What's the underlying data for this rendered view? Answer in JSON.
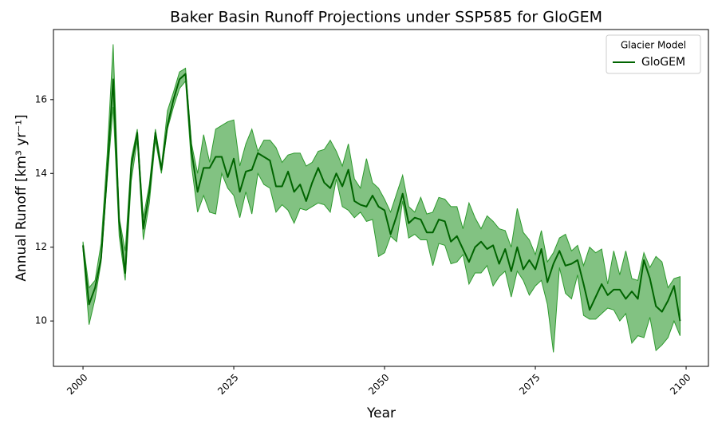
{
  "chart_data": {
    "type": "line",
    "title": "Baker Basin Runoff Projections under SSP585 for GloGEM",
    "x_label": "Year",
    "y_label": "Annual Runoff [km³ yr⁻¹]",
    "legend_title": "Glacier Model",
    "legend": "upper right",
    "x": [
      2000,
      2001,
      2002,
      2003,
      2004,
      2005,
      2006,
      2007,
      2008,
      2009,
      2010,
      2011,
      2012,
      2013,
      2014,
      2015,
      2016,
      2017,
      2018,
      2019,
      2020,
      2021,
      2022,
      2023,
      2024,
      2025,
      2026,
      2027,
      2028,
      2029,
      2030,
      2031,
      2032,
      2033,
      2034,
      2035,
      2036,
      2037,
      2038,
      2039,
      2040,
      2041,
      2042,
      2043,
      2044,
      2045,
      2046,
      2047,
      2048,
      2049,
      2050,
      2051,
      2052,
      2053,
      2054,
      2055,
      2056,
      2057,
      2058,
      2059,
      2060,
      2061,
      2062,
      2063,
      2064,
      2065,
      2066,
      2067,
      2068,
      2069,
      2070,
      2071,
      2072,
      2073,
      2074,
      2075,
      2076,
      2077,
      2078,
      2079,
      2080,
      2081,
      2082,
      2083,
      2084,
      2085,
      2086,
      2087,
      2088,
      2089,
      2090,
      2091,
      2092,
      2093,
      2094,
      2095,
      2096,
      2097,
      2098,
      2099
    ],
    "series": [
      {
        "name": "GloGEM",
        "color": "#006400",
        "band_color": "#2e9a2e",
        "band_opacity": 0.6,
        "values": [
          12.05,
          10.45,
          10.9,
          11.7,
          14.0,
          16.55,
          12.7,
          11.3,
          14.2,
          15.1,
          12.5,
          13.5,
          15.1,
          14.1,
          15.3,
          16.0,
          16.55,
          16.7,
          14.6,
          13.5,
          14.15,
          14.15,
          14.45,
          14.45,
          13.9,
          14.4,
          13.5,
          14.05,
          14.1,
          14.55,
          14.45,
          14.35,
          13.65,
          13.65,
          14.05,
          13.5,
          13.7,
          13.25,
          13.75,
          14.15,
          13.75,
          13.6,
          14.0,
          13.65,
          14.1,
          13.25,
          13.15,
          13.1,
          13.4,
          13.1,
          13.0,
          12.35,
          12.85,
          13.45,
          12.65,
          12.8,
          12.75,
          12.4,
          12.4,
          12.75,
          12.7,
          12.15,
          12.3,
          11.95,
          11.6,
          12.0,
          12.15,
          11.95,
          12.05,
          11.55,
          11.95,
          11.35,
          12.0,
          11.4,
          11.65,
          11.4,
          11.95,
          11.05,
          11.55,
          11.9,
          11.5,
          11.55,
          11.65,
          11.0,
          10.3,
          10.65,
          11.0,
          10.7,
          10.85,
          10.85,
          10.6,
          10.8,
          10.6,
          11.65,
          11.15,
          10.4,
          10.25,
          10.55,
          10.95,
          10.0
        ],
        "upper": [
          12.15,
          10.9,
          11.1,
          12.1,
          14.5,
          17.5,
          12.8,
          11.9,
          14.4,
          15.2,
          12.8,
          13.7,
          15.2,
          14.2,
          15.7,
          16.2,
          16.75,
          16.85,
          14.8,
          14.0,
          15.05,
          14.3,
          15.2,
          15.3,
          15.4,
          15.45,
          14.2,
          14.8,
          15.2,
          14.6,
          14.9,
          14.9,
          14.7,
          14.3,
          14.5,
          14.55,
          14.55,
          14.2,
          14.3,
          14.6,
          14.65,
          14.9,
          14.6,
          14.2,
          14.8,
          13.85,
          13.6,
          14.4,
          13.75,
          13.6,
          13.3,
          12.95,
          13.45,
          13.95,
          13.1,
          12.95,
          13.35,
          12.9,
          12.95,
          13.35,
          13.3,
          13.1,
          13.1,
          12.5,
          13.2,
          12.8,
          12.5,
          12.85,
          12.7,
          12.5,
          12.45,
          12.0,
          13.05,
          12.4,
          12.2,
          11.8,
          12.45,
          11.6,
          11.85,
          12.25,
          12.35,
          11.9,
          12.05,
          11.5,
          12.0,
          11.85,
          11.95,
          11.0,
          11.9,
          11.25,
          11.9,
          11.15,
          11.1,
          11.85,
          11.45,
          11.75,
          11.6,
          10.9,
          11.15,
          11.2
        ],
        "lower": [
          11.95,
          9.9,
          10.6,
          11.6,
          13.8,
          15.8,
          12.3,
          11.1,
          13.8,
          14.9,
          12.2,
          13.2,
          14.9,
          14.0,
          15.2,
          15.8,
          16.3,
          16.5,
          14.2,
          12.95,
          13.4,
          12.95,
          12.9,
          14.0,
          13.6,
          13.4,
          12.8,
          13.5,
          12.9,
          14.0,
          13.7,
          13.6,
          12.95,
          13.15,
          13.0,
          12.65,
          13.05,
          13.0,
          13.1,
          13.2,
          13.15,
          12.95,
          13.85,
          13.1,
          13.0,
          12.8,
          12.95,
          12.7,
          12.75,
          11.75,
          11.85,
          12.3,
          12.15,
          13.25,
          12.25,
          12.35,
          12.2,
          12.2,
          11.5,
          12.1,
          12.05,
          11.55,
          11.6,
          11.8,
          11.0,
          11.3,
          11.3,
          11.5,
          10.95,
          11.2,
          11.35,
          10.65,
          11.35,
          11.1,
          10.7,
          10.95,
          11.1,
          10.45,
          9.15,
          11.45,
          10.75,
          10.6,
          11.25,
          10.15,
          10.05,
          10.05,
          10.2,
          10.35,
          10.3,
          10.0,
          10.2,
          9.4,
          9.6,
          9.55,
          10.1,
          9.2,
          9.35,
          9.55,
          10.0,
          9.6
        ]
      }
    ],
    "xlim": [
      1995.1,
      2103.7
    ],
    "ylim": [
      8.77,
      17.9
    ],
    "xticks": [
      2000,
      2025,
      2050,
      2075,
      2100
    ],
    "yticks": [
      10,
      12,
      14,
      16
    ],
    "grid": false
  }
}
